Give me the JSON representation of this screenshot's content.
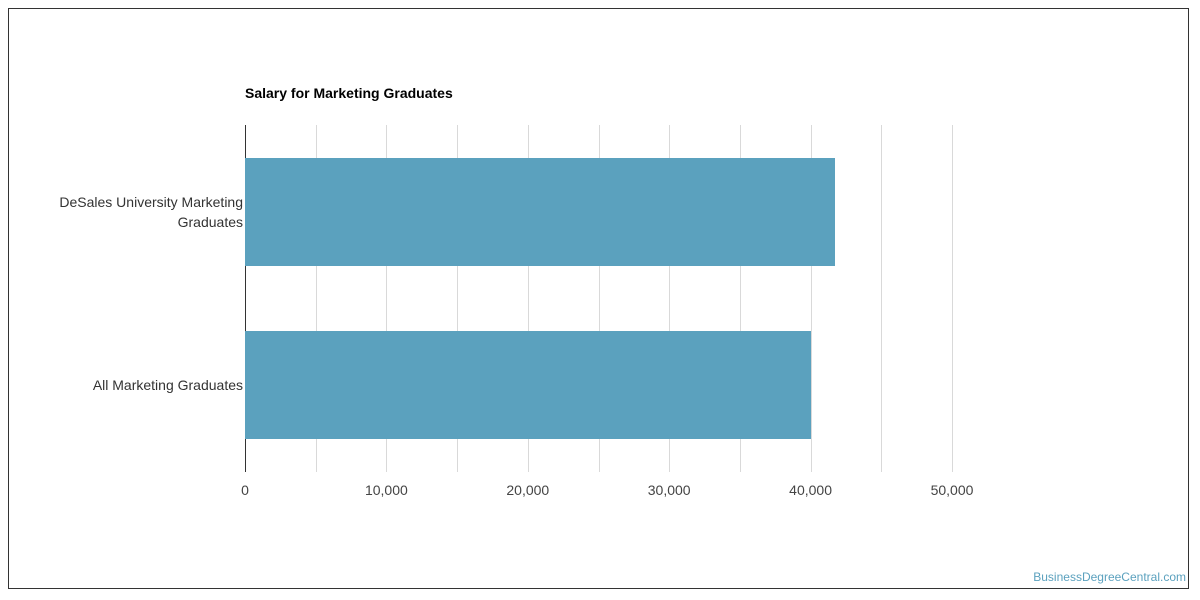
{
  "chart_data": {
    "type": "bar",
    "orientation": "horizontal",
    "title": "Salary for Marketing Graduates",
    "categories": [
      "DeSales University Marketing Graduates",
      "All Marketing Graduates"
    ],
    "values": [
      41700,
      40000
    ],
    "color": "#5ba1be",
    "xlim": [
      0,
      50000
    ],
    "xticks": [
      0,
      {
        "value": 10000,
        "label": "10,000"
      },
      {
        "value": 20000,
        "label": "20,000"
      },
      {
        "value": 30000,
        "label": "30,000"
      },
      {
        "value": 40000,
        "label": "40,000"
      },
      {
        "value": 50000,
        "label": "50,000"
      }
    ],
    "minor_gridlines": [
      5000,
      15000,
      25000,
      35000,
      45000
    ],
    "grid": true,
    "source": "BusinessDegreeCentral.com"
  }
}
